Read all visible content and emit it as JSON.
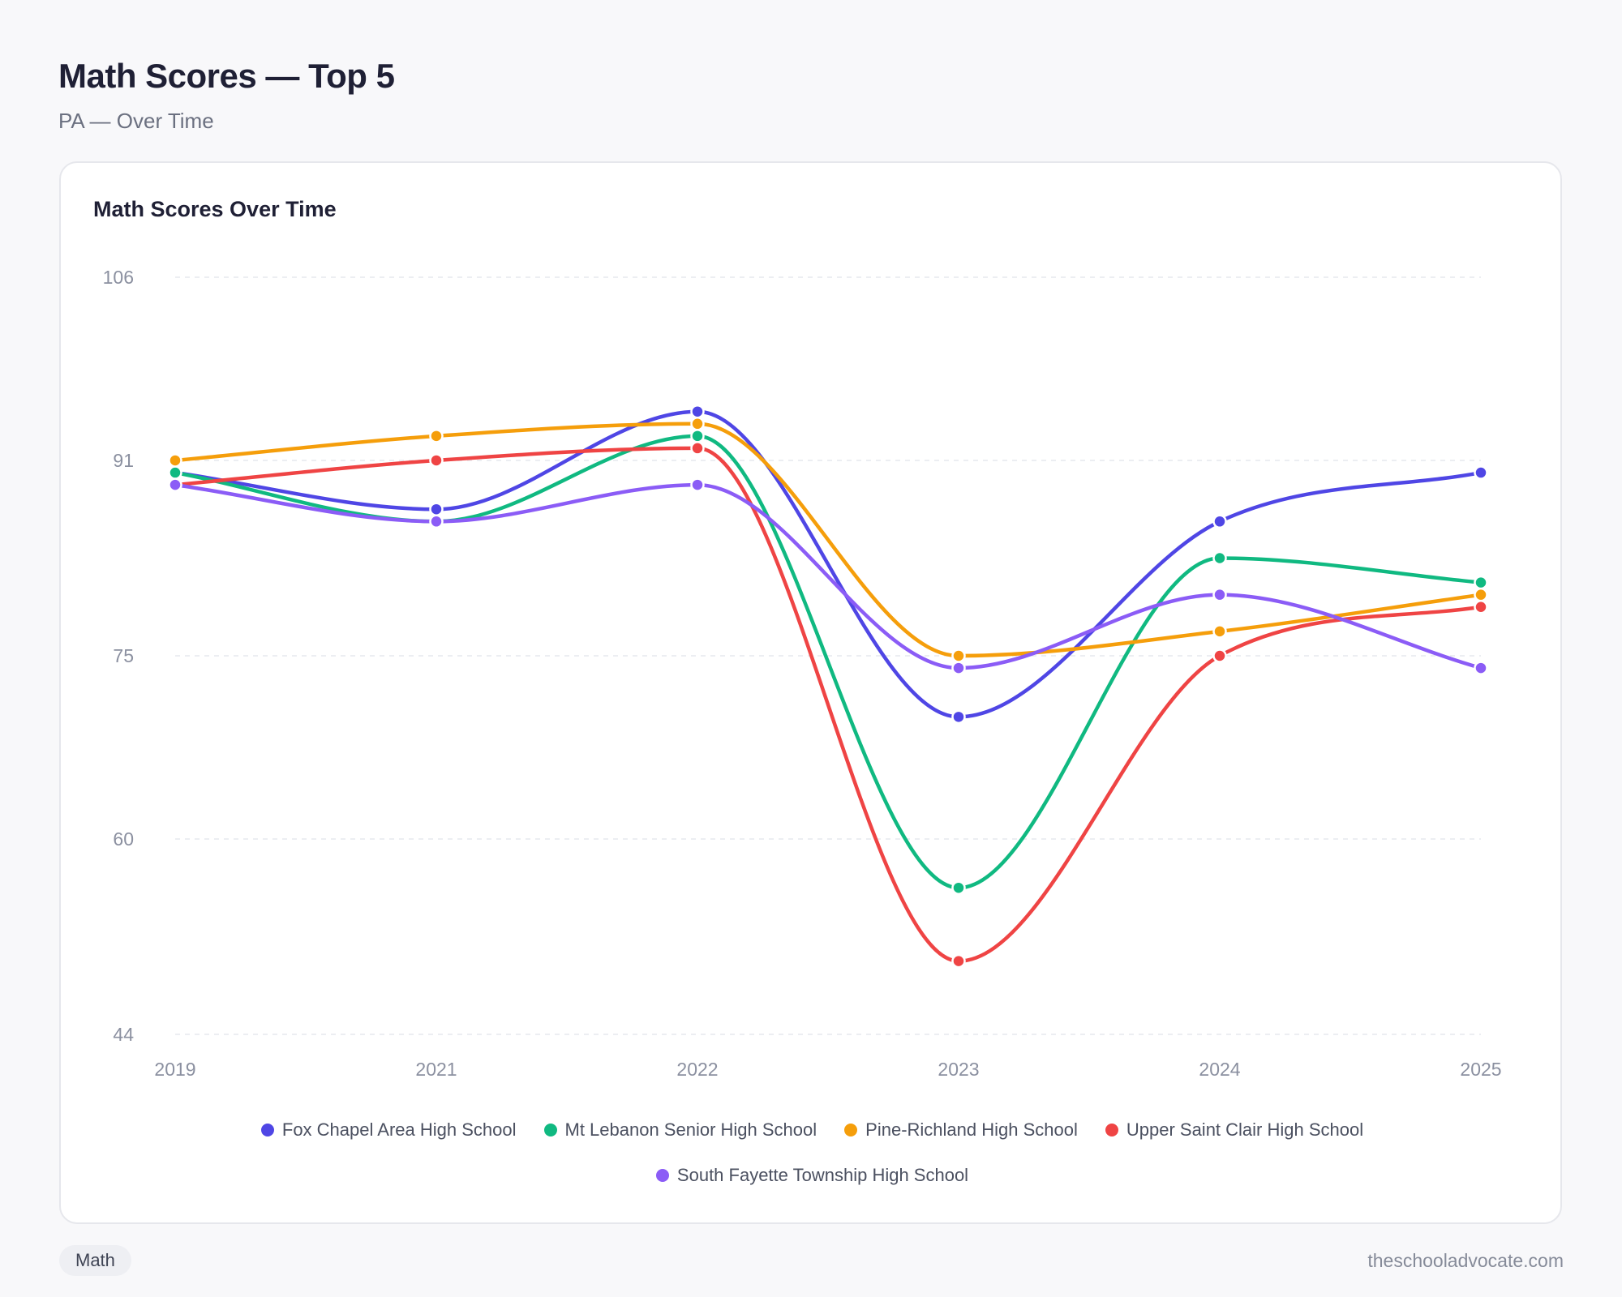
{
  "header": {
    "title": "Math Scores — Top 5",
    "subtitle": "PA — Over Time"
  },
  "card": {
    "title": "Math Scores Over Time"
  },
  "footer": {
    "tag": "Math",
    "site": "theschooladvocate.com"
  },
  "chart_data": {
    "type": "line",
    "title": "Math Scores Over Time",
    "xlabel": "",
    "ylabel": "",
    "curve": "smooth",
    "grid": true,
    "legend_position": "bottom",
    "x": [
      "2019",
      "2021",
      "2022",
      "2023",
      "2024",
      "2025"
    ],
    "ylim": [
      44,
      106
    ],
    "yticks": [
      44,
      60,
      75,
      91,
      106
    ],
    "series": [
      {
        "name": "Fox Chapel Area High School",
        "color": "#4f46e5",
        "values": [
          90,
          87,
          95,
          70,
          86,
          90
        ]
      },
      {
        "name": "Mt Lebanon Senior High School",
        "color": "#10b981",
        "values": [
          90,
          86,
          93,
          56,
          83,
          81
        ]
      },
      {
        "name": "Pine-Richland High School",
        "color": "#f59e0b",
        "values": [
          91,
          93,
          94,
          75,
          77,
          80
        ]
      },
      {
        "name": "Upper Saint Clair High School",
        "color": "#ef4444",
        "values": [
          89,
          91,
          92,
          50,
          75,
          79
        ]
      },
      {
        "name": "South Fayette Township High School",
        "color": "#8b5cf6",
        "values": [
          89,
          86,
          89,
          74,
          80,
          74
        ]
      }
    ]
  }
}
